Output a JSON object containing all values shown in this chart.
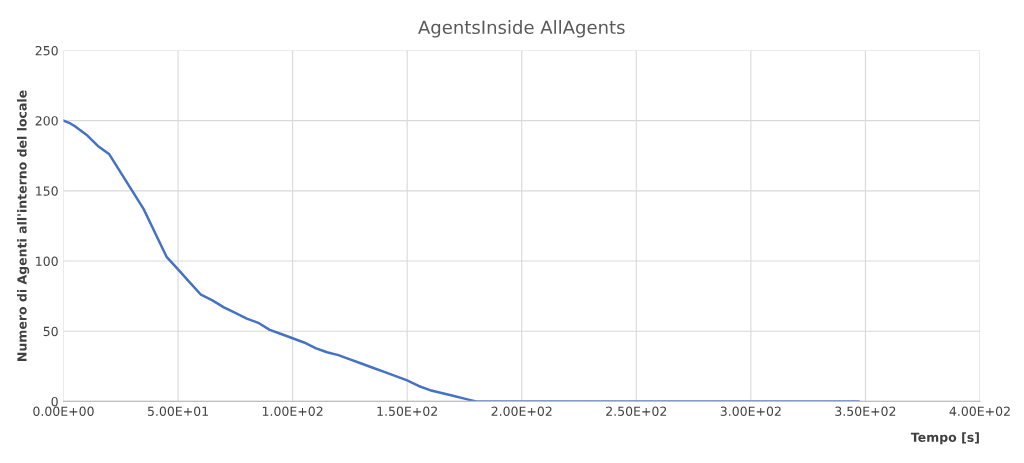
{
  "chart_data": {
    "type": "line",
    "title": "AgentsInside AllAgents",
    "xlabel": "Tempo [s]",
    "ylabel": "Numero di Agenti all'interno del locale",
    "x": [
      0,
      3,
      5,
      10,
      15,
      20,
      25,
      30,
      35,
      40,
      45,
      50,
      55,
      60,
      65,
      70,
      75,
      80,
      85,
      90,
      95,
      100,
      105,
      110,
      115,
      120,
      125,
      130,
      135,
      140,
      145,
      150,
      155,
      160,
      165,
      170,
      175,
      180,
      182,
      347
    ],
    "series": [
      {
        "color": "#4472c4",
        "values": [
          200,
          198,
          196,
          190,
          182,
          176,
          163,
          150,
          137,
          120,
          103,
          94,
          85,
          76,
          72,
          67,
          63,
          59,
          56,
          51,
          48,
          45,
          42,
          38,
          35,
          33,
          30,
          27,
          24,
          21,
          18,
          15,
          11,
          8,
          6,
          4,
          2,
          0,
          0,
          0
        ]
      }
    ],
    "xlim": [
      0,
      400
    ],
    "ylim": [
      0,
      250
    ],
    "xticks": [
      {
        "value": 0,
        "label": "0.00E+00"
      },
      {
        "value": 50,
        "label": "5.00E+01"
      },
      {
        "value": 100,
        "label": "1.00E+02"
      },
      {
        "value": 150,
        "label": "1.50E+02"
      },
      {
        "value": 200,
        "label": "2.00E+02"
      },
      {
        "value": 250,
        "label": "2.50E+02"
      },
      {
        "value": 300,
        "label": "3.00E+02"
      },
      {
        "value": 350,
        "label": "3.50E+02"
      },
      {
        "value": 400,
        "label": "4.00E+02"
      }
    ],
    "yticks": [
      0,
      50,
      100,
      150,
      200,
      250
    ],
    "grid": true,
    "legend": false,
    "marker": "none",
    "line_style": "solid"
  }
}
